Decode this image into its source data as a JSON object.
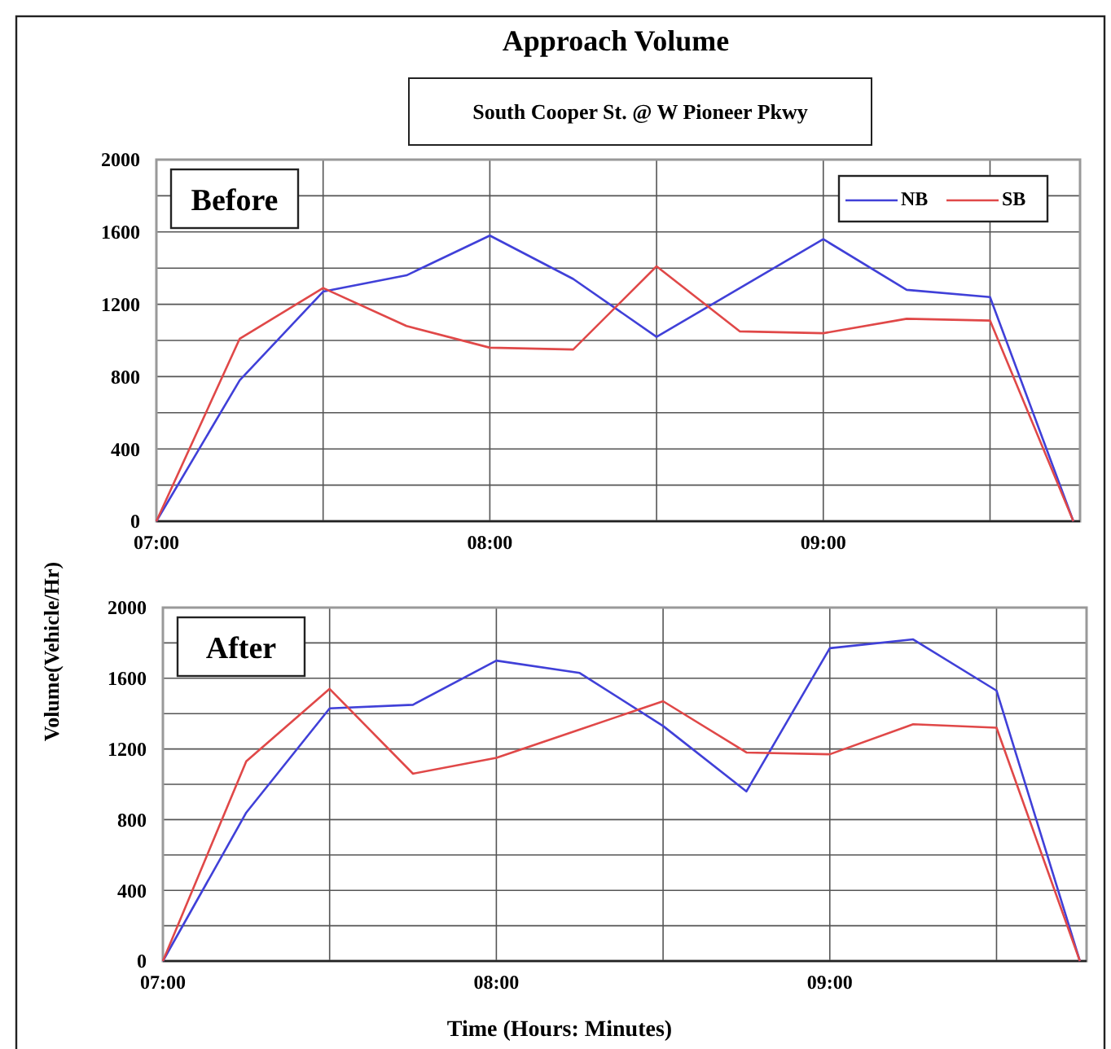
{
  "chart_data": [
    {
      "type": "line",
      "title": "Approach Volume",
      "subtitle": "South Cooper St. @ W Pioneer Pkwy",
      "ylabel": "Volume(Vehicle/Hr)",
      "annotations": [
        "Before"
      ],
      "x": [
        7,
        7.25,
        7.5,
        7.75,
        8,
        8.25,
        8.5,
        8.75,
        9,
        9.25,
        9.5,
        9.75
      ],
      "series": [
        {
          "name": "NB",
          "color": "#4040d8",
          "values": [
            0,
            780,
            1270,
            1360,
            1580,
            1340,
            1020,
            1290,
            1560,
            1280,
            1240,
            0
          ]
        },
        {
          "name": "SB",
          "color": "#e04848",
          "values": [
            0,
            1010,
            1290,
            1080,
            960,
            950,
            1410,
            1050,
            1040,
            1120,
            1110,
            0
          ]
        }
      ],
      "xlim": [
        7,
        9.77
      ],
      "xticks": [
        {
          "value": 7,
          "label": "07:00"
        },
        {
          "value": 7.5,
          "label": null
        },
        {
          "value": 8,
          "label": "08:00"
        },
        {
          "value": 8.5,
          "label": null
        },
        {
          "value": 9,
          "label": "09:00"
        },
        {
          "value": 9.5,
          "label": null
        }
      ],
      "ylim": [
        0,
        2000
      ],
      "yticks": [
        0,
        {
          "value": 200,
          "label": null
        },
        400,
        {
          "value": 600,
          "label": null
        },
        800,
        {
          "value": 1000,
          "label": null
        },
        1200,
        {
          "value": 1400,
          "label": null
        },
        1600,
        {
          "value": 1800,
          "label": null
        },
        2000
      ],
      "grid": true,
      "legend": "top right",
      "marker": "none",
      "line_style": "solid"
    },
    {
      "type": "line",
      "xlabel": "Time (Hours: Minutes)",
      "annotations": [
        "After"
      ],
      "x": [
        7,
        7.25,
        7.5,
        7.75,
        8,
        8.25,
        8.5,
        8.75,
        9,
        9.25,
        9.5,
        9.75
      ],
      "series": [
        {
          "color": "#4040d8",
          "values": [
            0,
            840,
            1430,
            1450,
            1700,
            1630,
            1330,
            960,
            1770,
            1820,
            1530,
            0
          ]
        },
        {
          "color": "#e04848",
          "values": [
            0,
            1130,
            1540,
            1060,
            1150,
            1310,
            1470,
            1180,
            1170,
            1340,
            1320,
            0
          ]
        }
      ],
      "xlim": [
        7,
        9.77
      ],
      "xticks": [
        {
          "value": 7,
          "label": "07:00"
        },
        {
          "value": 7.5,
          "label": null
        },
        {
          "value": 8,
          "label": "08:00"
        },
        {
          "value": 8.5,
          "label": null
        },
        {
          "value": 9,
          "label": "09:00"
        },
        {
          "value": 9.5,
          "label": null
        }
      ],
      "ylim": [
        0,
        2000
      ],
      "yticks": [
        0,
        {
          "value": 200,
          "label": null
        },
        400,
        {
          "value": 600,
          "label": null
        },
        800,
        {
          "value": 1000,
          "label": null
        },
        1200,
        {
          "value": 1400,
          "label": null
        },
        1600,
        {
          "value": 1800,
          "label": null
        },
        2000
      ],
      "grid": true,
      "marker": "none",
      "line_style": "solid"
    }
  ]
}
